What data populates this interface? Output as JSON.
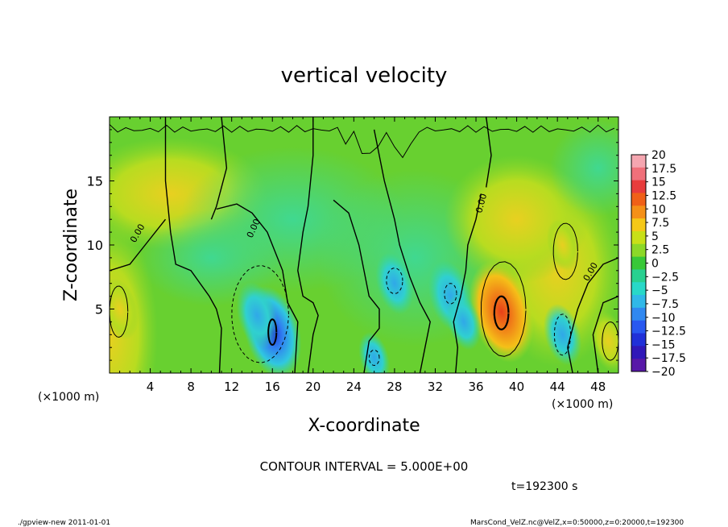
{
  "chart_data": {
    "type": "heatmap",
    "title": "vertical velocity",
    "xlabel": "X-coordinate",
    "ylabel": "Z-coordinate",
    "x_unit": "(×1000 m)",
    "y_unit": "(×1000 m)",
    "xlim": [
      0,
      50
    ],
    "ylim": [
      0,
      20
    ],
    "x_ticks": [
      "4",
      "8",
      "12",
      "16",
      "20",
      "24",
      "28",
      "32",
      "36",
      "40",
      "44",
      "48"
    ],
    "y_ticks": [
      "5",
      "10",
      "15"
    ],
    "contour_label": "0.00",
    "contour_interval": "CONTOUR INTERVAL = 5.000E+00",
    "time_label": "t=192300 s",
    "colorbar": {
      "labels": [
        "20",
        "17.5",
        "15",
        "12.5",
        "10",
        "7.5",
        "5",
        "2.5",
        "0",
        "−2.5",
        "−5",
        "−7.5",
        "−10",
        "−12.5",
        "−15",
        "−17.5",
        "−20"
      ],
      "colors": [
        "#f5a6b0",
        "#f0707a",
        "#e83c3c",
        "#f06018",
        "#f59018",
        "#f5c818",
        "#c8e018",
        "#8cd828",
        "#38c838",
        "#28d090",
        "#28d8c8",
        "#30b8e8",
        "#3088f0",
        "#2858f0",
        "#2030d8",
        "#3018b8",
        "#5818a8"
      ]
    },
    "features": [
      {
        "x": 38.5,
        "z": 4.8,
        "value": 14,
        "kind": "updraft"
      },
      {
        "x": 44.5,
        "z": 3.0,
        "value": -6,
        "kind": "downdraft"
      },
      {
        "x": 16.0,
        "z": 3.2,
        "value": -12,
        "kind": "downdraft"
      },
      {
        "x": 14.5,
        "z": 4.5,
        "value": -7,
        "kind": "downdraft"
      },
      {
        "x": 28.0,
        "z": 7.0,
        "value": -6,
        "kind": "downdraft"
      },
      {
        "x": 33.5,
        "z": 6.0,
        "value": -8,
        "kind": "downdraft"
      },
      {
        "x": 34.8,
        "z": 4.0,
        "value": -5,
        "kind": "downdraft"
      },
      {
        "x": 1.0,
        "z": 5.0,
        "value": 6,
        "kind": "updraft"
      },
      {
        "x": 49.0,
        "z": 2.5,
        "value": 6,
        "kind": "updraft"
      },
      {
        "x": 44.5,
        "z": 10.0,
        "value": 4,
        "kind": "updraft"
      },
      {
        "x": 26.0,
        "z": 1.2,
        "value": -4,
        "kind": "downdraft"
      }
    ]
  },
  "footer": {
    "left": "./gpview-new 2011-01-01",
    "right": "MarsCond_VelZ.nc@VelZ,x=0:50000,z=0:20000,t=192300"
  }
}
